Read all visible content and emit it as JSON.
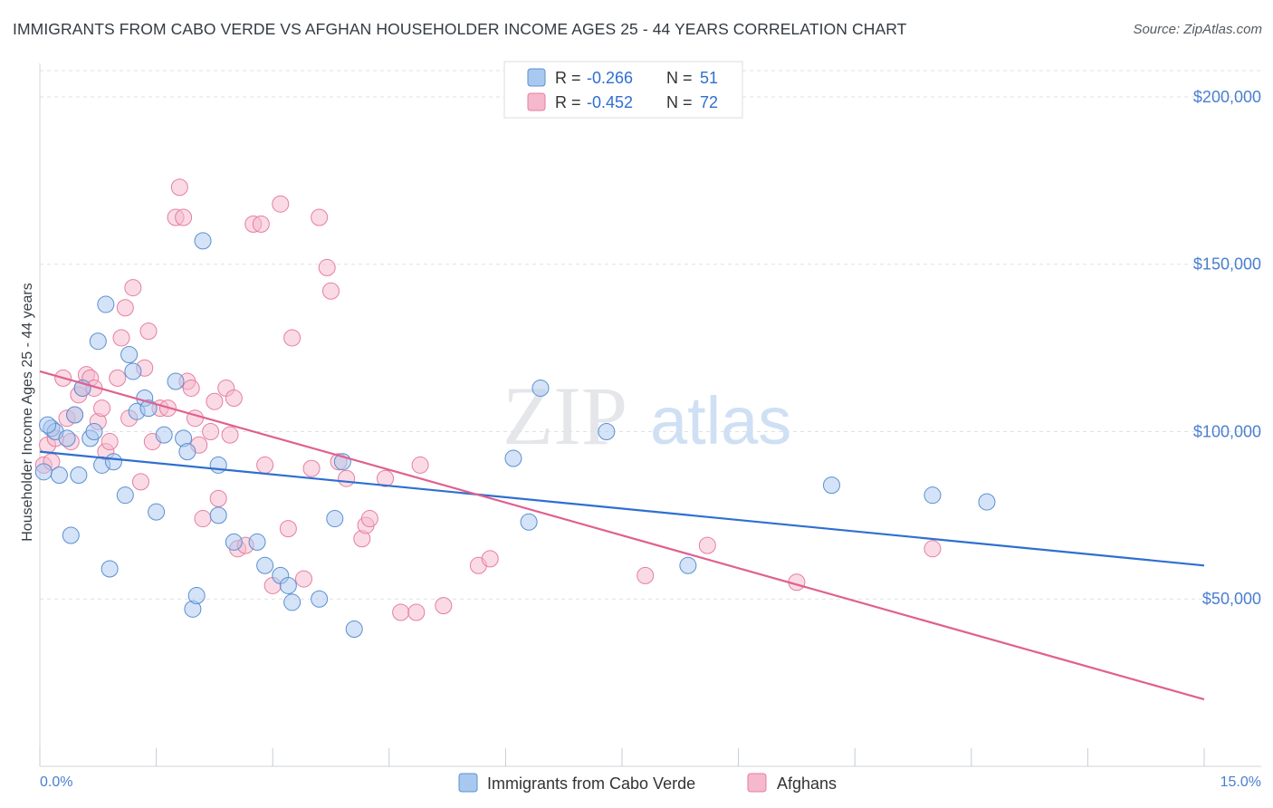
{
  "title": "IMMIGRANTS FROM CABO VERDE VS AFGHAN HOUSEHOLDER INCOME AGES 25 - 44 YEARS CORRELATION CHART",
  "source": "Source: ZipAtlas.com",
  "watermark": {
    "zip": "ZIP",
    "atlas": "atlas"
  },
  "colors": {
    "blue_fill": "#a9c8ef",
    "blue_stroke": "#5a8fd2",
    "blue_line": "#2f6fd0",
    "pink_fill": "#f5b8cc",
    "pink_stroke": "#e67ea0",
    "pink_line": "#e0608f",
    "axis_text": "#4a7fd0",
    "grid": "#d9dde3"
  },
  "legend_top": {
    "rows": [
      {
        "r_label": "R = ",
        "r_value": "-0.266",
        "n_label": "N = ",
        "n_value": "51"
      },
      {
        "r_label": "R = ",
        "r_value": "-0.452",
        "n_label": "N = ",
        "n_value": "72"
      }
    ]
  },
  "chart_data": {
    "type": "scatter",
    "title": "IMMIGRANTS FROM CABO VERDE VS AFGHAN HOUSEHOLDER INCOME AGES 25 - 44 YEARS CORRELATION CHART",
    "xlabel": "",
    "ylabel": "Householder Income Ages 25 - 44 years",
    "xlim": [
      0,
      15
    ],
    "ylim": [
      0,
      210000
    ],
    "x_tick_labels": [
      "0.0%",
      "15.0%"
    ],
    "y_ticks": [
      50000,
      100000,
      150000,
      200000
    ],
    "y_tick_labels": [
      "$50,000",
      "$100,000",
      "$150,000",
      "$200,000"
    ],
    "grid": "horizontal dashed",
    "legend_position": "bottom-center",
    "series": [
      {
        "name": "Immigrants from Cabo Verde",
        "color": "#a9c8ef",
        "trend": {
          "x0": 0,
          "y0": 94000,
          "x1": 15,
          "y1": 60000
        },
        "points": [
          [
            0.05,
            88000
          ],
          [
            0.15,
            101000
          ],
          [
            0.2,
            100000
          ],
          [
            0.25,
            87000
          ],
          [
            0.35,
            98000
          ],
          [
            0.4,
            69000
          ],
          [
            0.45,
            105000
          ],
          [
            0.5,
            87000
          ],
          [
            0.55,
            113000
          ],
          [
            0.65,
            98000
          ],
          [
            0.7,
            100000
          ],
          [
            0.75,
            127000
          ],
          [
            0.8,
            90000
          ],
          [
            0.85,
            138000
          ],
          [
            0.9,
            59000
          ],
          [
            0.95,
            91000
          ],
          [
            1.1,
            81000
          ],
          [
            1.15,
            123000
          ],
          [
            1.2,
            118000
          ],
          [
            1.25,
            106000
          ],
          [
            1.35,
            110000
          ],
          [
            1.4,
            107000
          ],
          [
            1.5,
            76000
          ],
          [
            1.6,
            99000
          ],
          [
            1.75,
            115000
          ],
          [
            1.85,
            98000
          ],
          [
            1.9,
            94000
          ],
          [
            1.97,
            47000
          ],
          [
            2.02,
            51000
          ],
          [
            2.1,
            157000
          ],
          [
            2.3,
            90000
          ],
          [
            2.3,
            75000
          ],
          [
            2.5,
            67000
          ],
          [
            2.8,
            67000
          ],
          [
            2.9,
            60000
          ],
          [
            3.1,
            57000
          ],
          [
            3.2,
            54000
          ],
          [
            3.25,
            49000
          ],
          [
            3.6,
            50000
          ],
          [
            3.8,
            74000
          ],
          [
            3.9,
            91000
          ],
          [
            4.05,
            41000
          ],
          [
            6.1,
            92000
          ],
          [
            6.3,
            73000
          ],
          [
            6.45,
            113000
          ],
          [
            7.3,
            100000
          ],
          [
            8.35,
            60000
          ],
          [
            10.2,
            84000
          ],
          [
            11.5,
            81000
          ],
          [
            12.2,
            79000
          ],
          [
            0.1,
            102000
          ]
        ]
      },
      {
        "name": "Afghans",
        "color": "#f5b8cc",
        "trend": {
          "x0": 0,
          "y0": 118000,
          "x1": 15,
          "y1": 20000
        },
        "points": [
          [
            0.05,
            90000
          ],
          [
            0.1,
            96000
          ],
          [
            0.2,
            98000
          ],
          [
            0.3,
            116000
          ],
          [
            0.35,
            104000
          ],
          [
            0.4,
            97000
          ],
          [
            0.45,
            105000
          ],
          [
            0.5,
            111000
          ],
          [
            0.55,
            113000
          ],
          [
            0.6,
            117000
          ],
          [
            0.65,
            116000
          ],
          [
            0.7,
            113000
          ],
          [
            0.75,
            103000
          ],
          [
            0.8,
            107000
          ],
          [
            0.85,
            94000
          ],
          [
            0.9,
            97000
          ],
          [
            1.0,
            116000
          ],
          [
            1.05,
            128000
          ],
          [
            1.1,
            137000
          ],
          [
            1.15,
            104000
          ],
          [
            1.2,
            143000
          ],
          [
            1.3,
            85000
          ],
          [
            1.35,
            119000
          ],
          [
            1.4,
            130000
          ],
          [
            1.45,
            97000
          ],
          [
            1.55,
            107000
          ],
          [
            1.65,
            107000
          ],
          [
            1.75,
            164000
          ],
          [
            1.8,
            173000
          ],
          [
            1.85,
            164000
          ],
          [
            1.9,
            115000
          ],
          [
            1.95,
            113000
          ],
          [
            2.0,
            104000
          ],
          [
            2.05,
            96000
          ],
          [
            2.1,
            74000
          ],
          [
            2.2,
            100000
          ],
          [
            2.25,
            109000
          ],
          [
            2.3,
            80000
          ],
          [
            2.4,
            113000
          ],
          [
            2.45,
            99000
          ],
          [
            2.5,
            110000
          ],
          [
            2.55,
            65000
          ],
          [
            2.65,
            66000
          ],
          [
            2.75,
            162000
          ],
          [
            2.85,
            162000
          ],
          [
            2.9,
            90000
          ],
          [
            3.0,
            54000
          ],
          [
            3.1,
            168000
          ],
          [
            3.2,
            71000
          ],
          [
            3.25,
            128000
          ],
          [
            3.4,
            56000
          ],
          [
            3.5,
            89000
          ],
          [
            3.6,
            164000
          ],
          [
            3.7,
            149000
          ],
          [
            3.75,
            142000
          ],
          [
            3.85,
            91000
          ],
          [
            3.95,
            86000
          ],
          [
            4.15,
            68000
          ],
          [
            4.2,
            72000
          ],
          [
            4.25,
            74000
          ],
          [
            4.45,
            86000
          ],
          [
            4.65,
            46000
          ],
          [
            4.85,
            46000
          ],
          [
            4.9,
            90000
          ],
          [
            5.2,
            48000
          ],
          [
            5.65,
            60000
          ],
          [
            5.8,
            62000
          ],
          [
            7.8,
            57000
          ],
          [
            8.6,
            66000
          ],
          [
            9.75,
            55000
          ],
          [
            11.5,
            65000
          ],
          [
            0.15,
            91000
          ]
        ]
      }
    ]
  }
}
